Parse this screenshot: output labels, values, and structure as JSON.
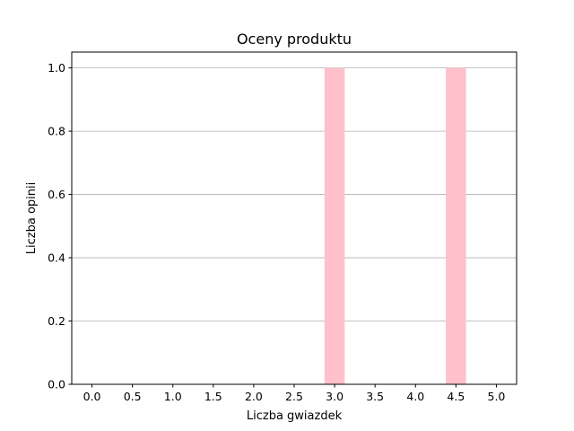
{
  "chart_data": {
    "type": "bar",
    "title": "Oceny produktu",
    "xlabel": "Liczba gwiazdek",
    "ylabel": "Liczba opinii",
    "xlim": [
      -0.25,
      5.25
    ],
    "ylim": [
      0,
      1.05
    ],
    "xticks": [
      "0.0",
      "0.5",
      "1.0",
      "1.5",
      "2.0",
      "2.5",
      "3.0",
      "3.5",
      "4.0",
      "4.5",
      "5.0"
    ],
    "yticks": [
      "0.0",
      "0.2",
      "0.4",
      "0.6",
      "0.8",
      "1.0"
    ],
    "grid": "y",
    "bar_color": "#ffc0cb",
    "bar_width": 0.25,
    "bars": [
      {
        "x": 3.0,
        "value": 1
      },
      {
        "x": 4.5,
        "value": 1
      }
    ]
  }
}
